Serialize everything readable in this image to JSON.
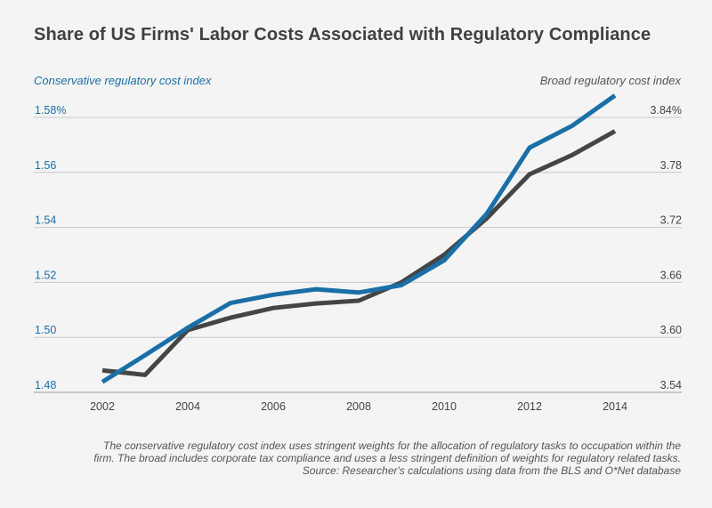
{
  "header": {
    "title": "Share of US Firms' Labor Costs Associated with Regulatory Compliance"
  },
  "chart_data": {
    "type": "line",
    "left_axis_label": "Conservative regulatory cost index",
    "right_axis_label": "Broad regulatory cost index",
    "x": [
      2002,
      2003,
      2004,
      2005,
      2006,
      2007,
      2008,
      2009,
      2010,
      2011,
      2012,
      2013,
      2014
    ],
    "xticks": [
      "2002",
      "2004",
      "2006",
      "2008",
      "2010",
      "2012",
      "2014"
    ],
    "xlim": [
      2001,
      2015
    ],
    "ylim_left": [
      1.48,
      1.58
    ],
    "ylim_right": [
      3.54,
      3.84
    ],
    "yticks_left": [
      "1.48",
      "1.50",
      "1.52",
      "1.54",
      "1.56",
      "1.58%"
    ],
    "yticks_right": [
      "3.54",
      "3.60",
      "3.66",
      "3.72",
      "3.78",
      "3.84%"
    ],
    "grid": true,
    "series": [
      {
        "axis": "left",
        "color": "#1a6fa6",
        "values": [
          1.4838,
          1.4935,
          1.5035,
          1.5125,
          1.5155,
          1.5175,
          1.5163,
          1.519,
          1.528,
          1.545,
          1.569,
          1.577,
          1.588
        ]
      },
      {
        "axis": "right",
        "color": "#454545",
        "values": [
          3.564,
          3.559,
          3.608,
          3.6215,
          3.632,
          3.637,
          3.64,
          3.66,
          3.69,
          3.73,
          3.778,
          3.799,
          3.825
        ]
      }
    ]
  },
  "footer": {
    "note_line1": "The conservative regulatory cost index uses stringent weights for the allocation of regulatory tasks to occupation within the",
    "note_line2": "firm. The broad includes corporate tax compliance and uses a less stringent definition of weights for regulatory related tasks.",
    "source": "Source: Researcher's calculations using data from the BLS and O*Net database"
  }
}
